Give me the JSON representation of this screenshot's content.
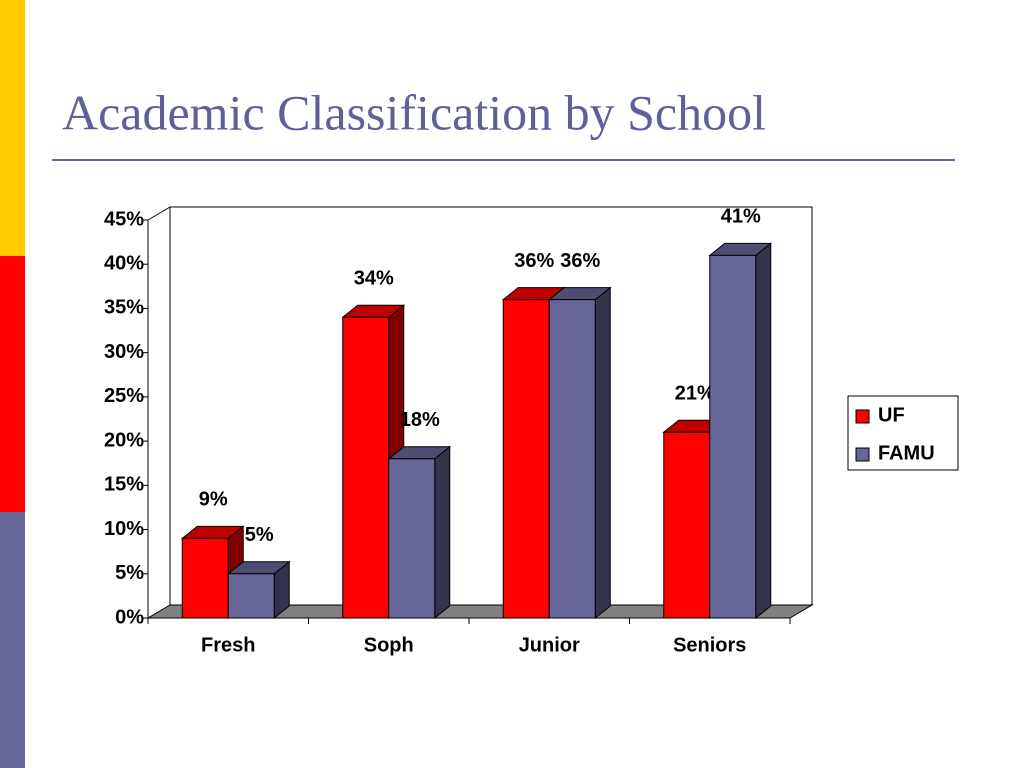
{
  "chart_data": {
    "type": "bar",
    "title": "Academic Classification by School",
    "categories": [
      "Fresh",
      "Soph",
      "Junior",
      "Seniors"
    ],
    "series": [
      {
        "name": "UF",
        "color": "#ff0000",
        "values": [
          9,
          34,
          36,
          21
        ],
        "value_labels": [
          "9%",
          "34%",
          "36%",
          "21%"
        ]
      },
      {
        "name": "FAMU",
        "color": "#666699",
        "values": [
          5,
          18,
          36,
          41
        ],
        "value_labels": [
          "5%",
          "18%",
          "36%",
          "41%"
        ]
      }
    ],
    "ylim": [
      0,
      45
    ],
    "yticks": [
      {
        "value": 0,
        "label": "0%"
      },
      {
        "value": 5,
        "label": "5%"
      },
      {
        "value": 10,
        "label": "10%"
      },
      {
        "value": 15,
        "label": "15%"
      },
      {
        "value": 20,
        "label": "20%"
      },
      {
        "value": 25,
        "label": "25%"
      },
      {
        "value": 30,
        "label": "30%"
      },
      {
        "value": 35,
        "label": "35%"
      },
      {
        "value": 40,
        "label": "40%"
      },
      {
        "value": 45,
        "label": "45%"
      }
    ],
    "grid": false,
    "legend": "right"
  }
}
